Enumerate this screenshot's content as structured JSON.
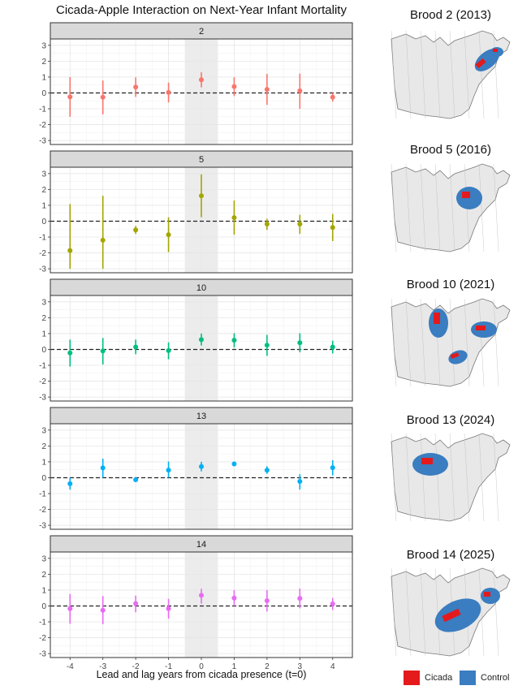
{
  "chart_data": {
    "type": "scatter",
    "subtype": "point-range facets",
    "title": "Cicada-Apple Interaction on Next-Year Infant Mortality",
    "xlabel": "Lead and lag years from cicada presence (t=0)",
    "ylabel": "",
    "x": [
      -4,
      -3,
      -2,
      -1,
      0,
      1,
      2,
      3,
      4
    ],
    "x_tick_labels": [
      "-4",
      "-3",
      "-2",
      "-1",
      "0",
      "1",
      "2",
      "3",
      "4"
    ],
    "y_tick_labels": [
      "3",
      "2",
      "1",
      "0",
      "-1",
      "-2",
      "-3"
    ],
    "ylim": [
      -3.25,
      3.4
    ],
    "xlim": [
      -4.6,
      4.6
    ],
    "shaded_region": [
      -0.5,
      0.5
    ],
    "reference_line": 0,
    "grid": true,
    "series": [
      {
        "name": "2",
        "color": "#F8766D",
        "estimate": [
          -0.25,
          -0.27,
          0.37,
          0.03,
          0.83,
          0.4,
          0.22,
          0.13,
          -0.27
        ],
        "low": [
          -1.5,
          -1.35,
          -0.25,
          -0.6,
          0.35,
          -0.2,
          -0.75,
          -1.0,
          -0.55
        ],
        "high": [
          1.0,
          0.78,
          0.98,
          0.65,
          1.3,
          0.98,
          1.2,
          1.22,
          0.0
        ]
      },
      {
        "name": "5",
        "color": "#A3A500",
        "estimate": [
          -1.85,
          -1.2,
          -0.55,
          -0.85,
          1.6,
          0.22,
          -0.18,
          -0.18,
          -0.4
        ],
        "low": [
          -3.0,
          -3.0,
          -0.8,
          -1.95,
          0.25,
          -0.85,
          -0.55,
          -0.8,
          -1.25
        ],
        "high": [
          1.08,
          1.6,
          -0.3,
          0.25,
          2.95,
          1.3,
          0.15,
          0.4,
          0.45
        ]
      },
      {
        "name": "10",
        "color": "#00BF7D",
        "estimate": [
          -0.22,
          -0.1,
          0.15,
          -0.07,
          0.62,
          0.58,
          0.27,
          0.42,
          0.15
        ],
        "low": [
          -1.08,
          -0.95,
          -0.3,
          -0.62,
          0.25,
          0.12,
          -0.4,
          -0.18,
          -0.25
        ],
        "high": [
          0.62,
          0.72,
          0.62,
          0.45,
          1.0,
          1.02,
          0.92,
          1.02,
          0.55
        ]
      },
      {
        "name": "13",
        "color": "#00B0F6",
        "estimate": [
          -0.38,
          0.62,
          -0.13,
          0.48,
          0.7,
          0.87,
          0.47,
          -0.23,
          0.63
        ],
        "low": [
          -0.75,
          0.0,
          -0.25,
          0.0,
          0.4,
          0.72,
          0.25,
          -0.75,
          0.15
        ],
        "high": [
          0.0,
          1.2,
          0.0,
          1.02,
          1.0,
          1.02,
          0.72,
          0.22,
          1.1
        ]
      },
      {
        "name": "14",
        "color": "#E76BF3",
        "estimate": [
          -0.17,
          -0.27,
          0.15,
          -0.17,
          0.67,
          0.5,
          0.33,
          0.48,
          0.13
        ],
        "low": [
          -1.12,
          -1.15,
          -0.4,
          -0.8,
          0.15,
          0.0,
          -0.35,
          -0.15,
          -0.25
        ],
        "high": [
          0.75,
          0.62,
          0.65,
          0.45,
          1.08,
          1.0,
          1.0,
          1.1,
          0.5
        ]
      }
    ]
  },
  "maps": [
    {
      "title": "Brood 2 (2013)",
      "brood": "2"
    },
    {
      "title": "Brood 5 (2016)",
      "brood": "5"
    },
    {
      "title": "Brood 10 (2021)",
      "brood": "10"
    },
    {
      "title": "Brood 13 (2024)",
      "brood": "13"
    },
    {
      "title": "Brood 14 (2025)",
      "brood": "14"
    }
  ],
  "legend": [
    {
      "label": "Cicada",
      "color": "#E41A1C"
    },
    {
      "label": "Control",
      "color": "#3A7DC0"
    }
  ]
}
